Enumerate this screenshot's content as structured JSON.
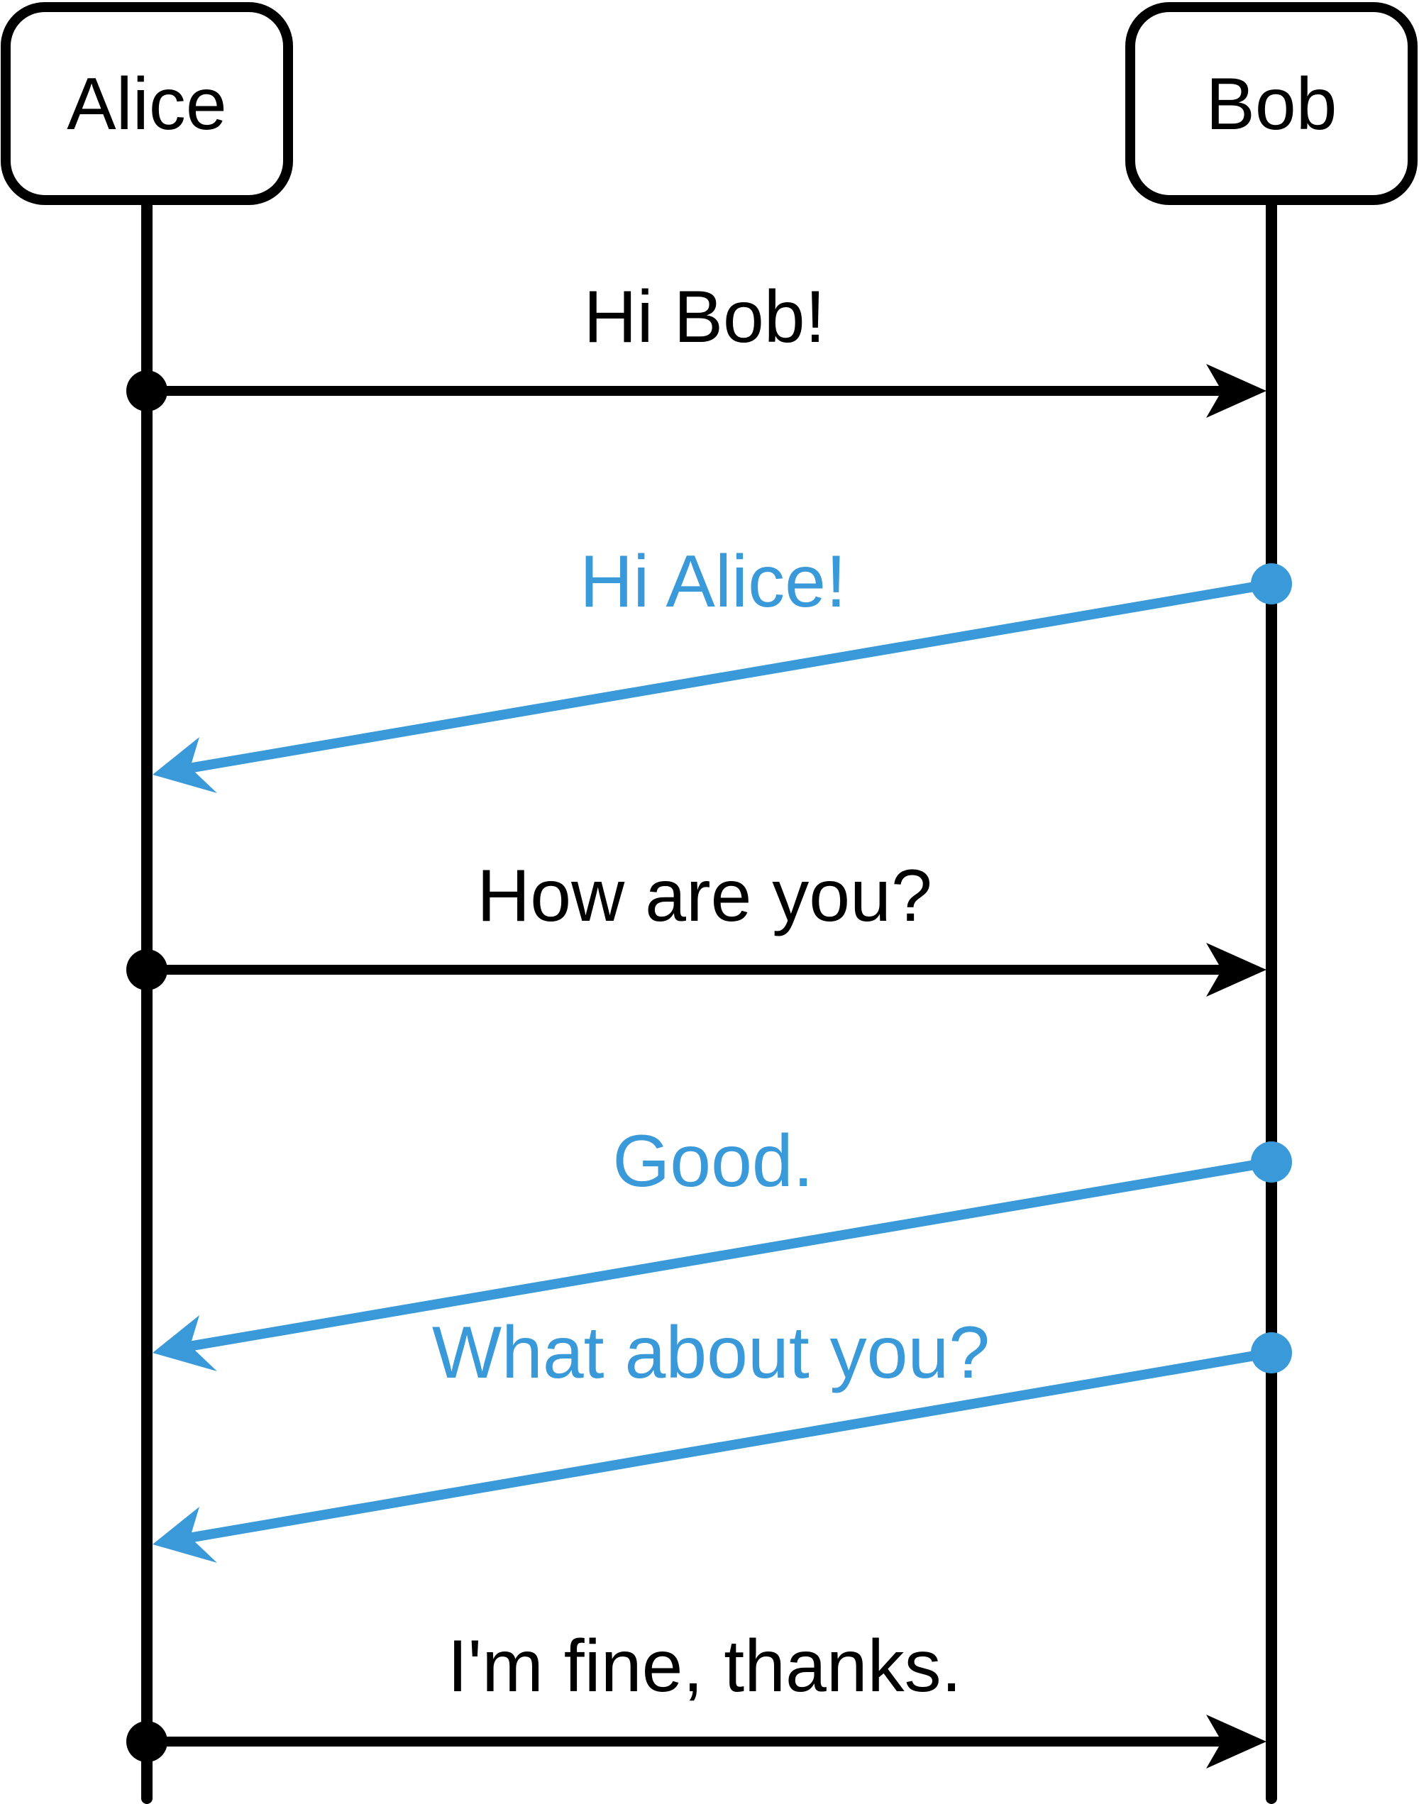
{
  "participants": [
    {
      "id": "alice",
      "label": "Alice"
    },
    {
      "id": "bob",
      "label": "Bob"
    }
  ],
  "colors": {
    "request": "#000000",
    "reply": "#3a9ad9"
  },
  "messages": [
    {
      "from": "alice",
      "to": "bob",
      "label": "Hi Bob!",
      "kind": "request"
    },
    {
      "from": "bob",
      "to": "alice",
      "label": "Hi Alice!",
      "kind": "reply"
    },
    {
      "from": "alice",
      "to": "bob",
      "label": "How are you?",
      "kind": "request"
    },
    {
      "from": "bob",
      "to": "alice",
      "label": "Good.",
      "kind": "reply"
    },
    {
      "from": "bob",
      "to": "alice",
      "label": "What about you?",
      "kind": "reply"
    },
    {
      "from": "alice",
      "to": "bob",
      "label": "I'm fine, thanks.",
      "kind": "request"
    }
  ]
}
